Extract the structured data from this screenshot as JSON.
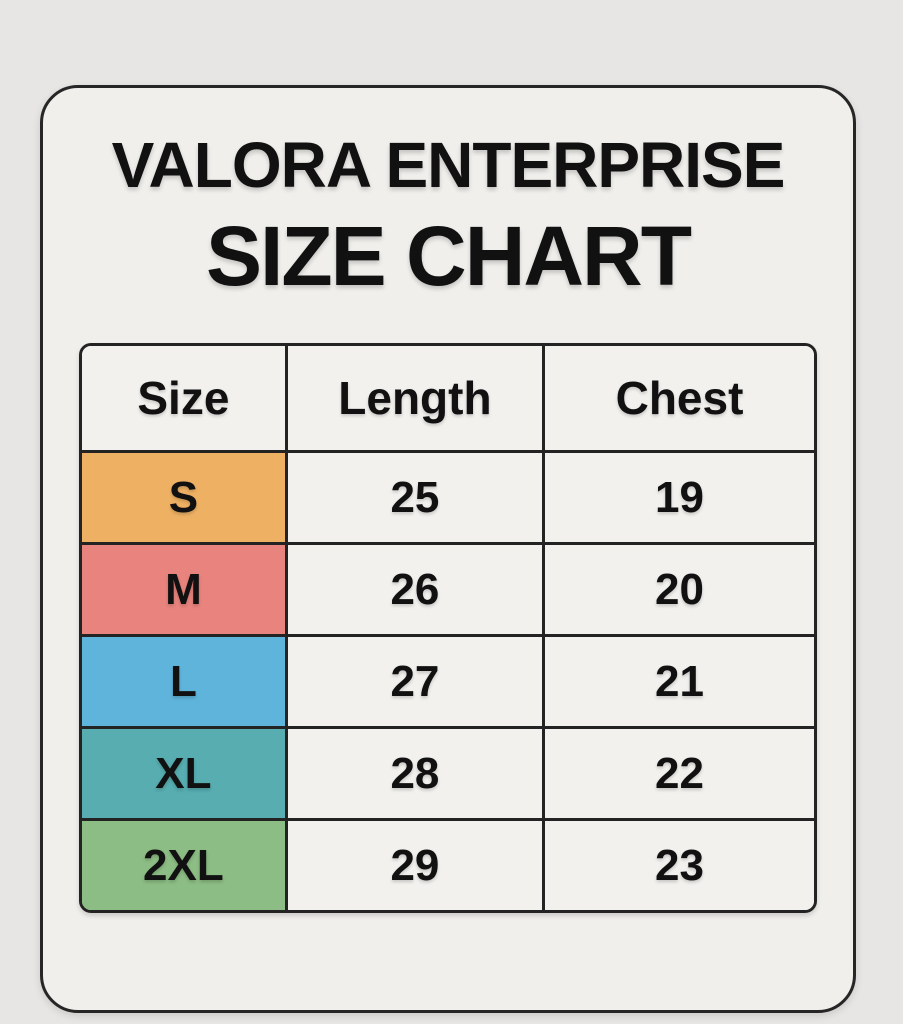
{
  "chart_data": {
    "type": "table",
    "title": "VALORA ENTERPRISE",
    "subtitle": "SIZE CHART",
    "columns": [
      "Size",
      "Length",
      "Chest"
    ],
    "rows": [
      {
        "size": "S",
        "length": "25",
        "chest": "19",
        "color": "#eeb164"
      },
      {
        "size": "M",
        "length": "26",
        "chest": "20",
        "color": "#e8837d"
      },
      {
        "size": "L",
        "length": "27",
        "chest": "21",
        "color": "#5fb4dc"
      },
      {
        "size": "XL",
        "length": "28",
        "chest": "22",
        "color": "#57adb0"
      },
      {
        "size": "2XL",
        "length": "29",
        "chest": "23",
        "color": "#8cbd84"
      }
    ]
  },
  "palette": {
    "page_background": "#e8e6e4",
    "card_background": "#f0efec",
    "cell_background": "#f2f1ee",
    "border": "#232323",
    "text": "#111111"
  }
}
